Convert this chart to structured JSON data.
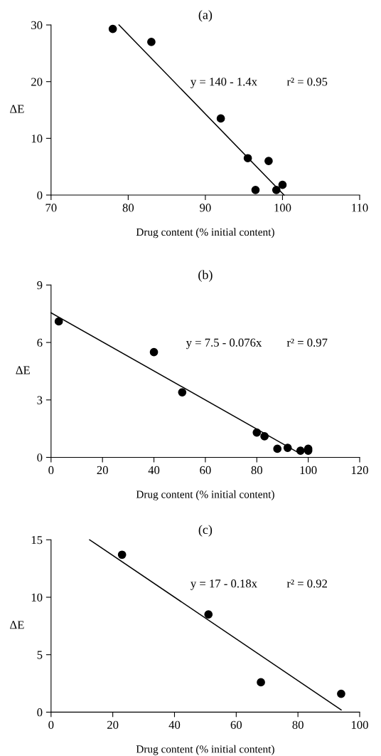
{
  "chart_data": [
    {
      "type": "scatter",
      "title": "(a)",
      "xlabel": "Drug content (% initial content)",
      "ylabel": "ΔE",
      "xlim": [
        70,
        110
      ],
      "xticks": [
        70,
        80,
        90,
        100,
        110
      ],
      "ylim": [
        0,
        30
      ],
      "yticks": [
        0,
        10,
        20,
        30
      ],
      "grid": false,
      "legend": false,
      "marker": "circle",
      "series": [
        {
          "color": "#000000",
          "x": [
            78,
            83,
            92,
            95.5,
            98.2,
            96.5,
            99.2,
            100
          ],
          "values": [
            29.3,
            27,
            13.5,
            6.5,
            6,
            0.9,
            0.9,
            1.8
          ]
        },
        {
          "type": "line",
          "color": "#000000",
          "marker": "none",
          "line_style": "solid",
          "x": [
            78.8,
            100.2
          ],
          "values": [
            30,
            0
          ]
        }
      ],
      "annotations": [
        "y = 140 - 1.4x",
        "r² = 0.95"
      ]
    },
    {
      "type": "scatter",
      "title": "(b)",
      "xlabel": "Drug content (% initial content)",
      "ylabel": "ΔE",
      "xlim": [
        0,
        120
      ],
      "xticks": [
        0,
        20,
        40,
        60,
        80,
        100,
        120
      ],
      "ylim": [
        0,
        9
      ],
      "yticks": [
        0,
        3,
        6,
        9
      ],
      "grid": false,
      "legend": false,
      "marker": "circle",
      "series": [
        {
          "color": "#000000",
          "x": [
            3,
            40,
            51,
            80,
            83,
            88,
            92,
            97,
            100,
            100
          ],
          "values": [
            7.1,
            5.5,
            3.4,
            1.3,
            1.1,
            0.45,
            0.5,
            0.35,
            0.35,
            0.45
          ]
        },
        {
          "type": "line",
          "color": "#000000",
          "marker": "none",
          "line_style": "solid",
          "x": [
            0,
            95.5
          ],
          "values": [
            7.55,
            0.3
          ]
        }
      ],
      "annotations": [
        "y = 7.5 - 0.076x",
        "r² = 0.97"
      ]
    },
    {
      "type": "scatter",
      "title": "(c)",
      "xlabel": "Drug content (% initial content)",
      "ylabel": "ΔE",
      "xlim": [
        0,
        100
      ],
      "xticks": [
        0,
        20,
        40,
        60,
        80,
        100
      ],
      "ylim": [
        0,
        15
      ],
      "yticks": [
        0,
        5,
        10,
        15
      ],
      "grid": false,
      "legend": false,
      "marker": "circle",
      "series": [
        {
          "color": "#000000",
          "x": [
            23,
            51,
            68,
            94
          ],
          "values": [
            13.7,
            8.5,
            2.6,
            1.6
          ]
        },
        {
          "type": "line",
          "color": "#000000",
          "marker": "none",
          "line_style": "solid",
          "x": [
            12.5,
            94
          ],
          "values": [
            15,
            0.2
          ]
        }
      ],
      "annotations": [
        "y = 17 - 0.18x",
        "r² = 0.92"
      ]
    }
  ]
}
